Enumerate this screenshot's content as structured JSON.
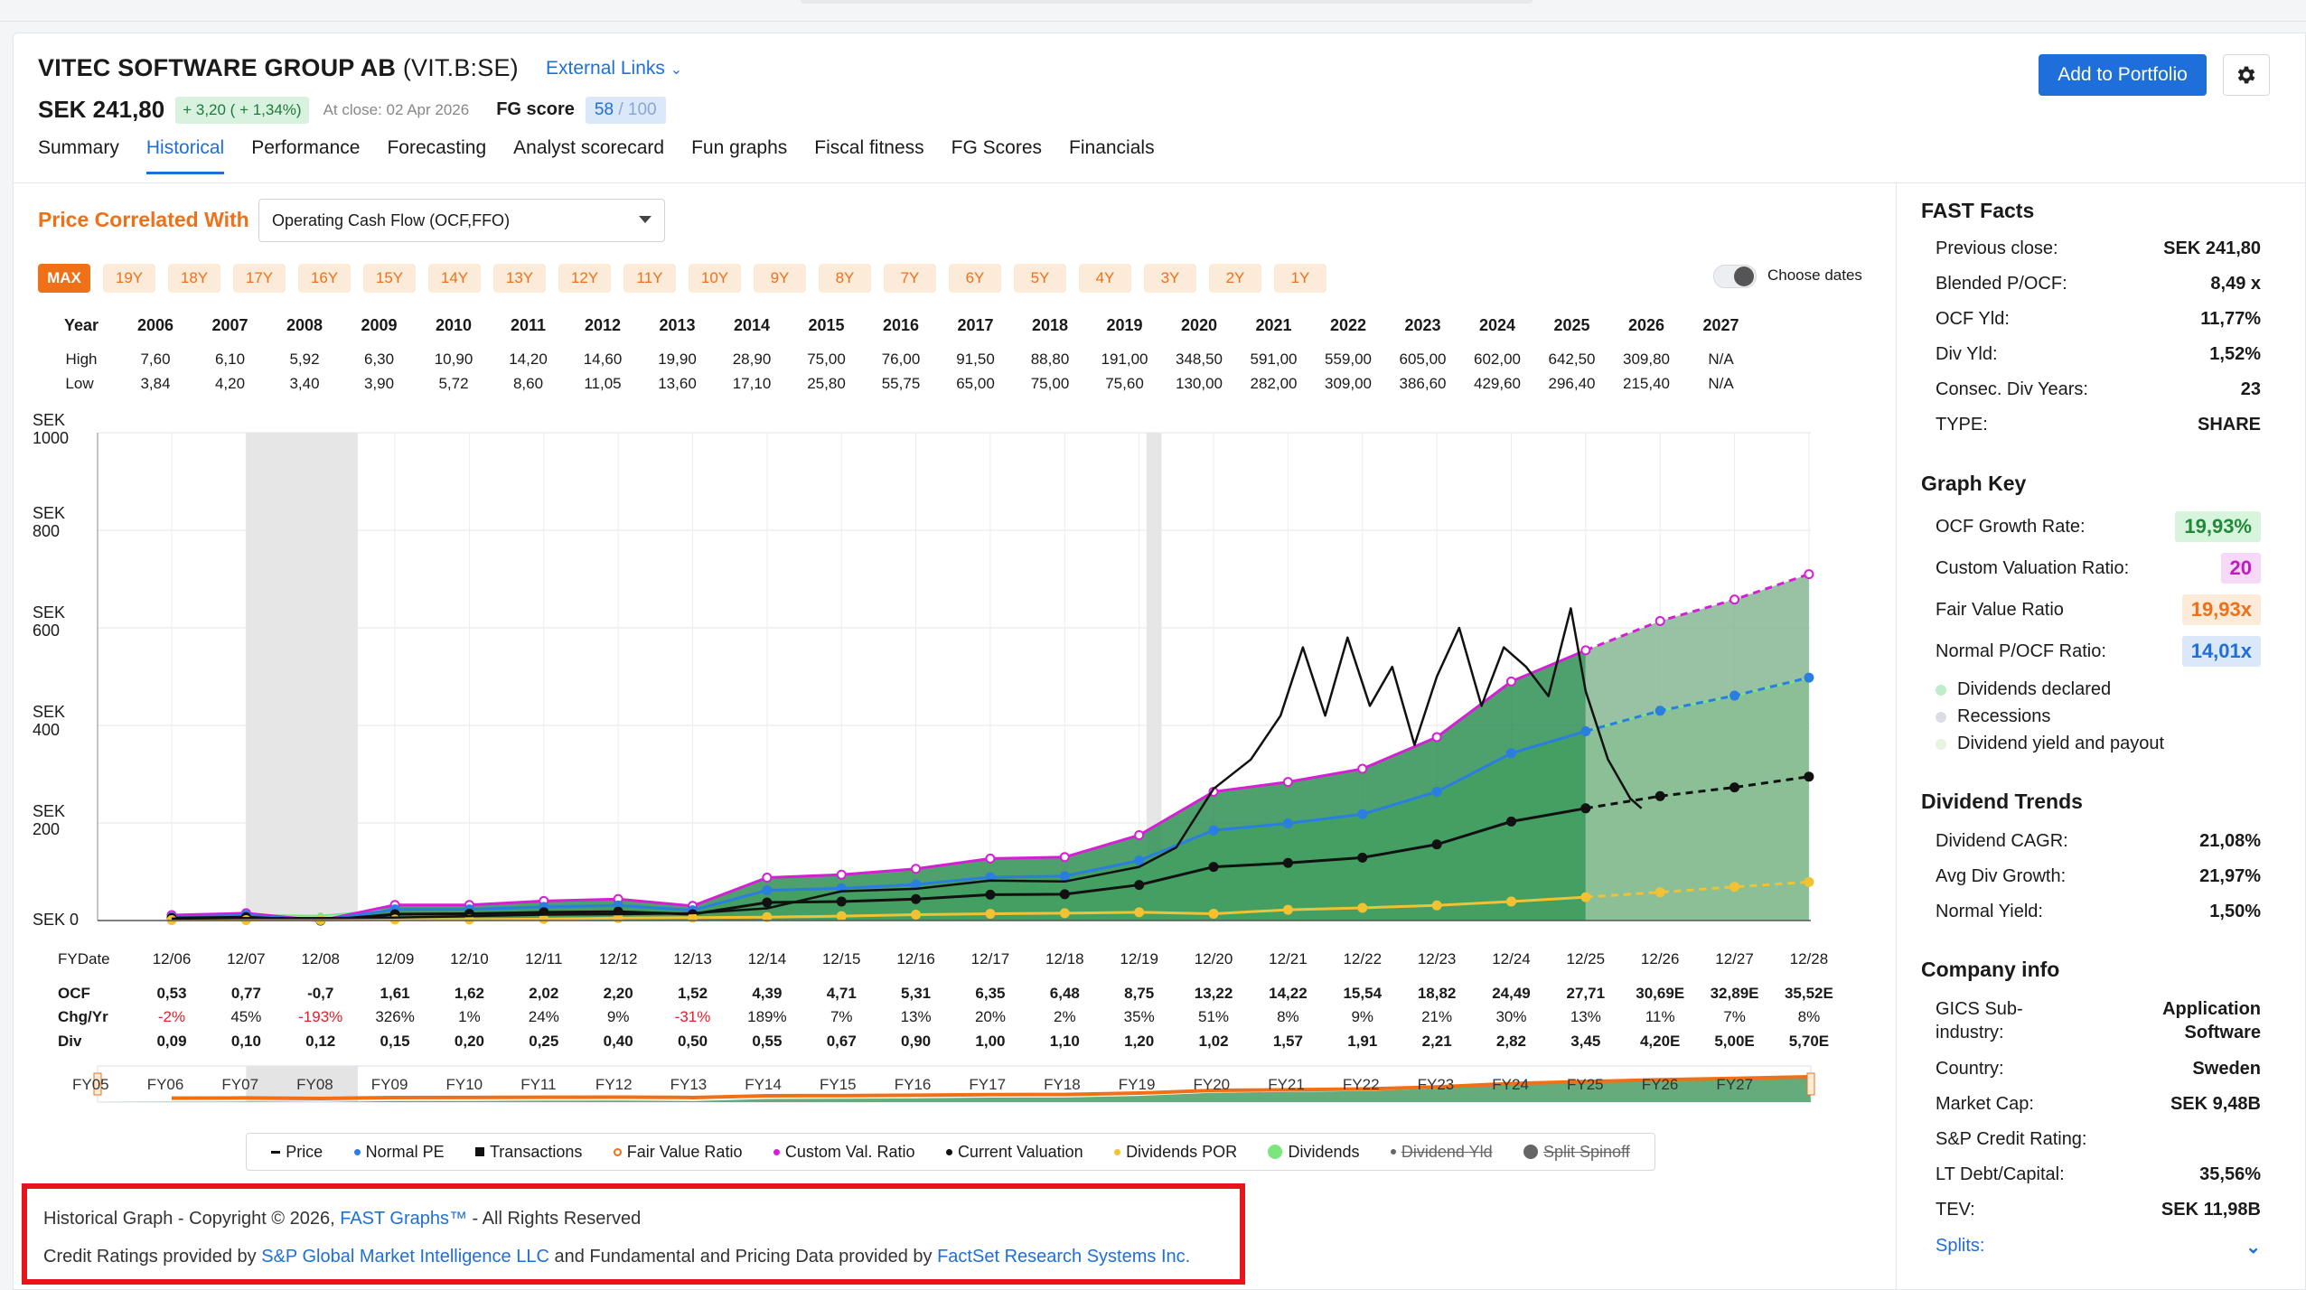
{
  "header": {
    "company": "VITEC SOFTWARE GROUP AB",
    "ticker": "(VIT.B:SE)",
    "external_links": "External Links",
    "price": "SEK 241,80",
    "change": "+ 3,20 ( + 1,34%)",
    "at_close": "At close: 02 Apr 2026",
    "fg_score_label": "FG score",
    "fg_score": "58",
    "fg_score_max": "/ 100",
    "add_portfolio": "Add to Portfolio"
  },
  "tabs": [
    "Summary",
    "Historical",
    "Performance",
    "Forecasting",
    "Analyst scorecard",
    "Fun graphs",
    "Fiscal fitness",
    "FG Scores",
    "Financials"
  ],
  "active_tab": "Historical",
  "controls": {
    "price_correlated_with": "Price Correlated With",
    "metric": "Operating Cash Flow (OCF,FFO)",
    "ranges": [
      "MAX",
      "19Y",
      "18Y",
      "17Y",
      "16Y",
      "15Y",
      "14Y",
      "13Y",
      "12Y",
      "11Y",
      "10Y",
      "9Y",
      "8Y",
      "7Y",
      "6Y",
      "5Y",
      "4Y",
      "3Y",
      "2Y",
      "1Y"
    ],
    "active_range": "MAX",
    "choose_dates": "Choose dates"
  },
  "year_table": {
    "year_label": "Year",
    "high_label": "High",
    "low_label": "Low",
    "years": [
      "2006",
      "2007",
      "2008",
      "2009",
      "2010",
      "2011",
      "2012",
      "2013",
      "2014",
      "2015",
      "2016",
      "2017",
      "2018",
      "2019",
      "2020",
      "2021",
      "2022",
      "2023",
      "2024",
      "2025",
      "2026",
      "2027"
    ],
    "high": [
      "7,60",
      "6,10",
      "5,92",
      "6,30",
      "10,90",
      "14,20",
      "14,60",
      "19,90",
      "28,90",
      "75,00",
      "76,00",
      "91,50",
      "88,80",
      "191,00",
      "348,50",
      "591,00",
      "559,00",
      "605,00",
      "602,00",
      "642,50",
      "309,80",
      "N/A"
    ],
    "low": [
      "3,84",
      "4,20",
      "3,40",
      "3,90",
      "5,72",
      "8,60",
      "11,05",
      "13,60",
      "17,10",
      "25,80",
      "55,75",
      "65,00",
      "75,00",
      "75,60",
      "130,00",
      "282,00",
      "309,00",
      "386,60",
      "429,60",
      "296,40",
      "215,40",
      "N/A"
    ]
  },
  "chart_data": {
    "type": "area",
    "y_axis_labels": [
      "SEK\n1000",
      "SEK\n800",
      "SEK\n600",
      "SEK\n400",
      "SEK\n200",
      "SEK 0"
    ],
    "ylim": [
      0,
      1000
    ],
    "x": [
      "12/06",
      "12/07",
      "12/08",
      "12/09",
      "12/10",
      "12/11",
      "12/12",
      "12/13",
      "12/14",
      "12/15",
      "12/16",
      "12/17",
      "12/18",
      "12/19",
      "12/20",
      "12/21",
      "12/22",
      "12/23",
      "12/24",
      "12/25",
      "12/26",
      "12/27",
      "12/28"
    ],
    "recessions": [
      [
        "2007-12",
        "2009-06"
      ],
      [
        "2020-02",
        "2020-04"
      ]
    ],
    "series": [
      {
        "name": "Dividends",
        "color": "#7be67b",
        "values": [
          8,
          11,
          10,
          23,
          23,
          28,
          31,
          21,
          62,
          66,
          75,
          89,
          91,
          123,
          185,
          199,
          218,
          263,
          343,
          388,
          430,
          460,
          497
        ]
      },
      {
        "name": "Custom Val. Ratio",
        "color": "#d61ed6",
        "values": [
          11,
          15,
          -14,
          32,
          32,
          40,
          44,
          30,
          88,
          94,
          106,
          127,
          130,
          175,
          264,
          284,
          311,
          376,
          490,
          554,
          614,
          658,
          710
        ]
      },
      {
        "name": "Normal PE",
        "color": "#2a7de1",
        "values": [
          7,
          11,
          -10,
          23,
          23,
          28,
          31,
          21,
          62,
          66,
          74,
          89,
          91,
          123,
          185,
          199,
          218,
          264,
          343,
          388,
          430,
          461,
          498
        ]
      },
      {
        "name": "Current Valuation",
        "color": "#111111",
        "values": [
          5,
          7,
          -6,
          13,
          14,
          17,
          18,
          13,
          37,
          39,
          44,
          53,
          54,
          73,
          110,
          118,
          129,
          156,
          203,
          230,
          255,
          273,
          295
        ]
      },
      {
        "name": "Dividends POR",
        "color": "#f2c232",
        "values": [
          1,
          1,
          1,
          2,
          2,
          3,
          5,
          6,
          7,
          9,
          12,
          14,
          15,
          17,
          14,
          22,
          26,
          31,
          39,
          48,
          58,
          69,
          79
        ]
      }
    ],
    "price": [
      [
        2006.0,
        4
      ],
      [
        2007.0,
        5
      ],
      [
        2008.0,
        5
      ],
      [
        2009.0,
        6
      ],
      [
        2010.0,
        9
      ],
      [
        2011.0,
        12
      ],
      [
        2012.0,
        13
      ],
      [
        2013.0,
        15
      ],
      [
        2014.0,
        25
      ],
      [
        2015.0,
        60
      ],
      [
        2016.0,
        65
      ],
      [
        2017.0,
        82
      ],
      [
        2018.0,
        80
      ],
      [
        2019.0,
        110
      ],
      [
        2019.5,
        150
      ],
      [
        2020.0,
        270
      ],
      [
        2020.5,
        330
      ],
      [
        2020.9,
        420
      ],
      [
        2021.2,
        560
      ],
      [
        2021.5,
        420
      ],
      [
        2021.8,
        580
      ],
      [
        2022.1,
        440
      ],
      [
        2022.4,
        520
      ],
      [
        2022.7,
        360
      ],
      [
        2023.0,
        500
      ],
      [
        2023.3,
        600
      ],
      [
        2023.6,
        440
      ],
      [
        2023.9,
        560
      ],
      [
        2024.2,
        520
      ],
      [
        2024.5,
        460
      ],
      [
        2024.8,
        640
      ],
      [
        2025.0,
        470
      ],
      [
        2025.3,
        330
      ],
      [
        2025.6,
        250
      ],
      [
        2025.75,
        230
      ]
    ]
  },
  "fiscal_table": {
    "fydate_label": "FYDate",
    "ocf_label": "OCF",
    "chg_label": "Chg/Yr",
    "div_label": "Div",
    "dates": [
      "12/06",
      "12/07",
      "12/08",
      "12/09",
      "12/10",
      "12/11",
      "12/12",
      "12/13",
      "12/14",
      "12/15",
      "12/16",
      "12/17",
      "12/18",
      "12/19",
      "12/20",
      "12/21",
      "12/22",
      "12/23",
      "12/24",
      "12/25",
      "12/26",
      "12/27",
      "12/28"
    ],
    "ocf": [
      "0,53",
      "0,77",
      "-0,7",
      "1,61",
      "1,62",
      "2,02",
      "2,20",
      "1,52",
      "4,39",
      "4,71",
      "5,31",
      "6,35",
      "6,48",
      "8,75",
      "13,22",
      "14,22",
      "15,54",
      "18,82",
      "24,49",
      "27,71",
      "30,69E",
      "32,89E",
      "35,52E"
    ],
    "chg": [
      "-2%",
      "45%",
      "-193%",
      "326%",
      "1%",
      "24%",
      "9%",
      "-31%",
      "189%",
      "7%",
      "13%",
      "20%",
      "2%",
      "35%",
      "51%",
      "8%",
      "9%",
      "21%",
      "30%",
      "13%",
      "11%",
      "7%",
      "8%"
    ],
    "chg_negative": [
      true,
      false,
      true,
      false,
      false,
      false,
      false,
      true,
      false,
      false,
      false,
      false,
      false,
      false,
      false,
      false,
      false,
      false,
      false,
      false,
      false,
      false,
      false
    ],
    "div": [
      "0,09",
      "0,10",
      "0,12",
      "0,15",
      "0,20",
      "0,25",
      "0,40",
      "0,50",
      "0,55",
      "0,67",
      "0,90",
      "1,00",
      "1,10",
      "1,20",
      "1,02",
      "1,57",
      "1,91",
      "2,21",
      "2,82",
      "3,45",
      "4,20E",
      "5,00E",
      "5,70E"
    ]
  },
  "navigator": {
    "labels": [
      "FY05",
      "FY06",
      "FY07",
      "FY08",
      "FY09",
      "FY10",
      "FY11",
      "FY12",
      "FY13",
      "FY14",
      "FY15",
      "FY16",
      "FY17",
      "FY18",
      "FY19",
      "FY20",
      "FY21",
      "FY22",
      "FY23",
      "FY24",
      "FY25",
      "FY26",
      "FY27"
    ]
  },
  "legend": [
    {
      "label": "Price",
      "marker": "dash",
      "color": "#111111"
    },
    {
      "label": "Normal PE",
      "marker": "dot",
      "color": "#2a7de1"
    },
    {
      "label": "Transactions",
      "marker": "square",
      "color": "#111111"
    },
    {
      "label": "Fair Value Ratio",
      "marker": "ring",
      "color": "#f07018"
    },
    {
      "label": "Custom Val. Ratio",
      "marker": "dot",
      "color": "#d61ed6"
    },
    {
      "label": "Current Valuation",
      "marker": "dot",
      "color": "#111111"
    },
    {
      "label": "Dividends POR",
      "marker": "dot",
      "color": "#f2c232"
    },
    {
      "label": "Dividends",
      "marker": "bigdot",
      "color": "#7be67b"
    },
    {
      "label": "Dividend Yld",
      "marker": "strike",
      "color": "#666666"
    },
    {
      "label": "Split Spinoff",
      "marker": "strikedot",
      "color": "#666666"
    }
  ],
  "footer": {
    "l1_pre": "Historical Graph - Copyright © 2026, ",
    "l1_link": "FAST Graphs™",
    "l1_post": " - All Rights Reserved",
    "l2_pre": "Credit Ratings provided by ",
    "l2_link1": "S&P Global Market Intelligence LLC",
    "l2_mid": " and Fundamental and Pricing Data provided by ",
    "l2_link2": "FactSet Research Systems Inc."
  },
  "fast_facts": {
    "title": "FAST Facts",
    "rows": [
      {
        "k": "Previous close:",
        "v": "SEK 241,80"
      },
      {
        "k": "Blended P/OCF:",
        "v": "8,49 x"
      },
      {
        "k": "OCF Yld:",
        "v": "11,77%"
      },
      {
        "k": "Div Yld:",
        "v": "1,52%"
      },
      {
        "k": "Consec. Div Years:",
        "v": "23"
      },
      {
        "k": "TYPE:",
        "v": "SHARE"
      }
    ]
  },
  "graph_key": {
    "title": "Graph Key",
    "rows": [
      {
        "k": "OCF Growth Rate:",
        "v": "19,93%",
        "bg": "#d7f5dc",
        "fg": "#1f8a3a"
      },
      {
        "k": "Custom Valuation Ratio:",
        "v": "20",
        "bg": "#f6d9f6",
        "fg": "#c21ac2"
      },
      {
        "k": "Fair Value Ratio",
        "v": "19,93x",
        "bg": "#fdebd9",
        "fg": "#f07018"
      },
      {
        "k": "Normal P/OCF Ratio:",
        "v": "14,01x",
        "bg": "#dbe8fa",
        "fg": "#1e6fd9"
      }
    ],
    "dots": [
      {
        "k": "Dividends declared",
        "color": "#bfeccb"
      },
      {
        "k": "Recessions",
        "color": "#dcdce6"
      },
      {
        "k": "Dividend yield and payout",
        "color": "#e6f5e0"
      }
    ]
  },
  "dividend_trends": {
    "title": "Dividend Trends",
    "rows": [
      {
        "k": "Dividend CAGR:",
        "v": "21,08%"
      },
      {
        "k": "Avg Div Growth:",
        "v": "21,97%"
      },
      {
        "k": "Normal Yield:",
        "v": "1,50%"
      }
    ]
  },
  "company_info": {
    "title": "Company info",
    "gics_k1": "GICS Sub-",
    "gics_k2": "industry:",
    "gics_v1": "Application",
    "gics_v2": "Software",
    "rows": [
      {
        "k": "Country:",
        "v": "Sweden"
      },
      {
        "k": "Market Cap:",
        "v": "SEK 9,48B"
      },
      {
        "k": "S&P Credit Rating:",
        "v": ""
      },
      {
        "k": "LT Debt/Capital:",
        "v": "35,56%"
      },
      {
        "k": "TEV:",
        "v": "SEK 11,98B"
      }
    ],
    "splits": "Splits:"
  }
}
